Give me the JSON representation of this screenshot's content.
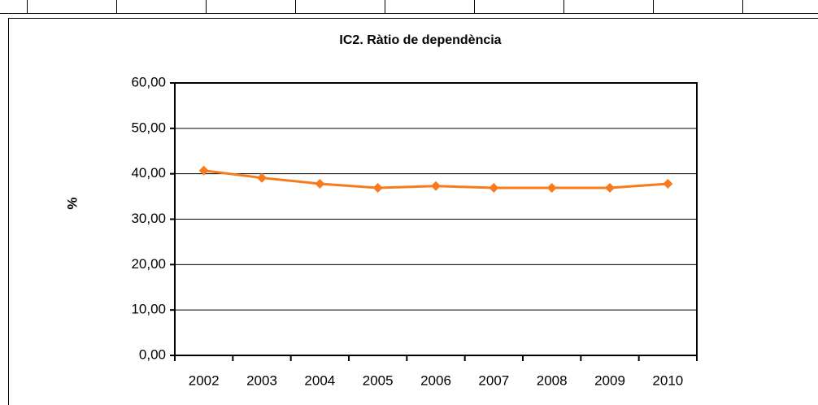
{
  "chart_data": {
    "type": "line",
    "title": "IC2. Ràtio de dependència",
    "y_label": "%",
    "categories": [
      "2002",
      "2003",
      "2004",
      "2005",
      "2006",
      "2007",
      "2008",
      "2009",
      "2010"
    ],
    "series": [
      {
        "name": "IC2",
        "color": "#f77b1c",
        "values": [
          40.7,
          39.1,
          37.8,
          36.9,
          37.3,
          36.9,
          36.9,
          36.9,
          37.8
        ]
      }
    ],
    "ylim": [
      0,
      60
    ],
    "yticks": [
      {
        "value": 0,
        "label": "0,00"
      },
      {
        "value": 10,
        "label": "10,00"
      },
      {
        "value": 20,
        "label": "20,00"
      },
      {
        "value": 30,
        "label": "30,00"
      },
      {
        "value": 40,
        "label": "40,00"
      },
      {
        "value": 50,
        "label": "50,00"
      },
      {
        "value": 60,
        "label": "60,00"
      }
    ],
    "grid": true
  }
}
